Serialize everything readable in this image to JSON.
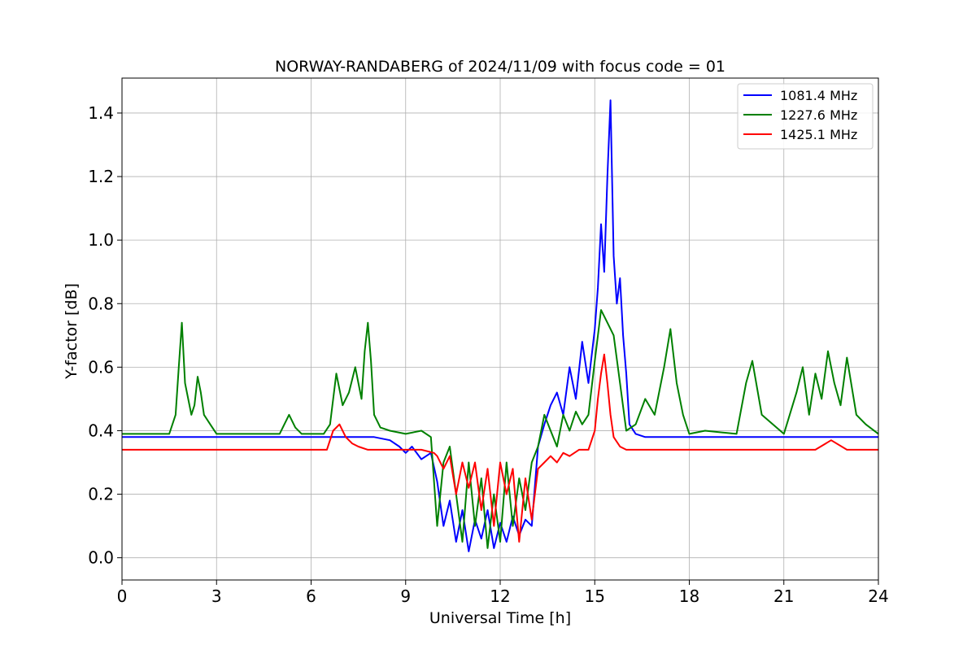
{
  "chart_data": {
    "type": "line",
    "title": "NORWAY-RANDABERG of 2024/11/09 with focus code = 01",
    "xlabel": "Universal Time [h]",
    "ylabel": "Y-factor [dB]",
    "xlim": [
      0,
      24
    ],
    "ylim": [
      -0.07,
      1.51
    ],
    "xticks": [
      0,
      3,
      6,
      9,
      12,
      15,
      18,
      21,
      24
    ],
    "yticks": [
      0.0,
      0.2,
      0.4,
      0.6,
      0.8,
      1.0,
      1.2,
      1.4
    ],
    "ytick_labels": [
      "0.0",
      "0.2",
      "0.4",
      "0.6",
      "0.8",
      "1.0",
      "1.2",
      "1.4"
    ],
    "grid": true,
    "legend_position": "top-right",
    "series": [
      {
        "name": "1081.4 MHz",
        "color": "#0000ff",
        "x": [
          0,
          0.5,
          1,
          1.5,
          2,
          2.5,
          3,
          4,
          5,
          6,
          6.5,
          7,
          7.5,
          8,
          8.5,
          8.8,
          9.0,
          9.2,
          9.5,
          9.8,
          10.0,
          10.2,
          10.4,
          10.6,
          10.8,
          11.0,
          11.2,
          11.4,
          11.6,
          11.8,
          12.0,
          12.2,
          12.4,
          12.6,
          12.8,
          13.0,
          13.2,
          13.4,
          13.6,
          13.8,
          14.0,
          14.2,
          14.4,
          14.6,
          14.8,
          15.0,
          15.1,
          15.2,
          15.3,
          15.4,
          15.5,
          15.6,
          15.7,
          15.8,
          15.9,
          16.0,
          16.1,
          16.3,
          16.6,
          17,
          18,
          19,
          20,
          21,
          22,
          23,
          24
        ],
        "y": [
          0.38,
          0.38,
          0.38,
          0.38,
          0.38,
          0.38,
          0.38,
          0.38,
          0.38,
          0.38,
          0.38,
          0.38,
          0.38,
          0.38,
          0.37,
          0.35,
          0.33,
          0.35,
          0.31,
          0.33,
          0.24,
          0.1,
          0.18,
          0.05,
          0.15,
          0.02,
          0.12,
          0.06,
          0.15,
          0.03,
          0.11,
          0.05,
          0.13,
          0.07,
          0.12,
          0.1,
          0.35,
          0.42,
          0.48,
          0.52,
          0.45,
          0.6,
          0.5,
          0.68,
          0.55,
          0.72,
          0.85,
          1.05,
          0.9,
          1.2,
          1.44,
          0.95,
          0.8,
          0.88,
          0.7,
          0.58,
          0.42,
          0.39,
          0.38,
          0.38,
          0.38,
          0.38,
          0.38,
          0.38,
          0.38,
          0.38,
          0.38
        ]
      },
      {
        "name": "1227.6 MHz",
        "color": "#008000",
        "x": [
          0,
          0.5,
          1,
          1.5,
          1.7,
          1.8,
          1.9,
          2.0,
          2.1,
          2.2,
          2.3,
          2.4,
          2.5,
          2.6,
          2.8,
          3.0,
          4,
          5,
          5.3,
          5.5,
          5.7,
          6.0,
          6.4,
          6.6,
          6.8,
          7.0,
          7.2,
          7.4,
          7.6,
          7.7,
          7.8,
          7.9,
          8.0,
          8.2,
          8.5,
          9.0,
          9.5,
          9.8,
          10.0,
          10.2,
          10.4,
          10.6,
          10.8,
          11.0,
          11.2,
          11.4,
          11.6,
          11.8,
          12.0,
          12.2,
          12.4,
          12.6,
          12.8,
          13.0,
          13.2,
          13.4,
          13.6,
          13.8,
          14.0,
          14.2,
          14.4,
          14.6,
          14.8,
          15.0,
          15.2,
          15.4,
          15.6,
          15.8,
          16.0,
          16.3,
          16.6,
          16.9,
          17.2,
          17.4,
          17.6,
          17.8,
          18,
          18.5,
          19.5,
          19.8,
          20.0,
          20.3,
          21,
          21.4,
          21.6,
          21.8,
          22.0,
          22.2,
          22.4,
          22.6,
          22.8,
          23.0,
          23.3,
          23.6,
          24
        ],
        "y": [
          0.39,
          0.39,
          0.39,
          0.39,
          0.45,
          0.6,
          0.74,
          0.55,
          0.5,
          0.45,
          0.48,
          0.57,
          0.52,
          0.45,
          0.42,
          0.39,
          0.39,
          0.39,
          0.45,
          0.41,
          0.39,
          0.39,
          0.39,
          0.42,
          0.58,
          0.48,
          0.52,
          0.6,
          0.5,
          0.65,
          0.74,
          0.62,
          0.45,
          0.41,
          0.4,
          0.39,
          0.4,
          0.38,
          0.1,
          0.3,
          0.35,
          0.2,
          0.05,
          0.3,
          0.1,
          0.25,
          0.03,
          0.2,
          0.05,
          0.3,
          0.1,
          0.25,
          0.15,
          0.3,
          0.35,
          0.45,
          0.4,
          0.35,
          0.45,
          0.4,
          0.46,
          0.42,
          0.45,
          0.62,
          0.78,
          0.74,
          0.7,
          0.55,
          0.4,
          0.42,
          0.5,
          0.45,
          0.6,
          0.72,
          0.55,
          0.45,
          0.39,
          0.4,
          0.39,
          0.55,
          0.62,
          0.45,
          0.39,
          0.52,
          0.6,
          0.45,
          0.58,
          0.5,
          0.65,
          0.55,
          0.48,
          0.63,
          0.45,
          0.42,
          0.39
        ]
      },
      {
        "name": "1425.1 MHz",
        "color": "#ff0000",
        "x": [
          0,
          1,
          2,
          3,
          4,
          5,
          6,
          6.5,
          6.7,
          6.9,
          7.1,
          7.3,
          7.5,
          7.8,
          8.5,
          9.5,
          9.9,
          10.0,
          10.2,
          10.4,
          10.6,
          10.8,
          11.0,
          11.2,
          11.4,
          11.6,
          11.8,
          12.0,
          12.2,
          12.4,
          12.6,
          12.8,
          13.0,
          13.2,
          13.4,
          13.6,
          13.8,
          14.0,
          14.2,
          14.5,
          14.8,
          15.0,
          15.1,
          15.2,
          15.3,
          15.4,
          15.5,
          15.6,
          15.8,
          16.0,
          16.5,
          17,
          18,
          19,
          20,
          21,
          22,
          22.5,
          23,
          24
        ],
        "y": [
          0.34,
          0.34,
          0.34,
          0.34,
          0.34,
          0.34,
          0.34,
          0.34,
          0.4,
          0.42,
          0.38,
          0.36,
          0.35,
          0.34,
          0.34,
          0.34,
          0.33,
          0.32,
          0.28,
          0.32,
          0.2,
          0.3,
          0.22,
          0.3,
          0.15,
          0.28,
          0.1,
          0.3,
          0.2,
          0.28,
          0.05,
          0.25,
          0.12,
          0.28,
          0.3,
          0.32,
          0.3,
          0.33,
          0.32,
          0.34,
          0.34,
          0.4,
          0.5,
          0.58,
          0.64,
          0.55,
          0.45,
          0.38,
          0.35,
          0.34,
          0.34,
          0.34,
          0.34,
          0.34,
          0.34,
          0.34,
          0.34,
          0.37,
          0.34,
          0.34
        ]
      }
    ]
  }
}
